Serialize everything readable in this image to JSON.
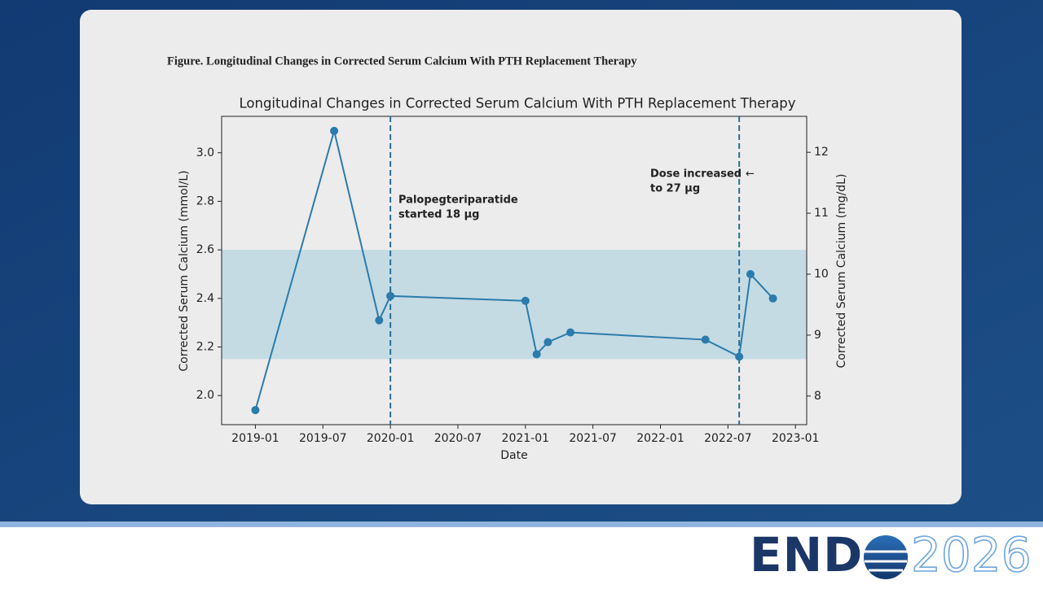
{
  "slide": {
    "heading": "Figure. Longitudinal Changes in Corrected Serum Calcium With PTH Replacement Therapy",
    "logo": {
      "left": "END",
      "right": "2026"
    }
  },
  "chart_data": {
    "type": "line",
    "title": "Longitudinal Changes in Corrected Serum Calcium With PTH Replacement Therapy",
    "x_label": "Date",
    "y_label": "Corrected Serum Calcium (mmol/L)",
    "y2_label": "Corrected Serum Calcium (mg/dL)",
    "x": [
      "2019-01",
      "2019-08",
      "2019-12",
      "2020-01",
      "2021-01",
      "2021-02",
      "2021-03",
      "2021-05",
      "2022-05",
      "2022-08",
      "2022-09",
      "2022-11"
    ],
    "values": [
      1.94,
      3.09,
      2.31,
      2.41,
      2.39,
      2.17,
      2.22,
      2.26,
      2.23,
      2.16,
      2.5,
      2.4
    ],
    "color": "#2b7bab",
    "xlim": [
      "2018-10",
      "2023-02"
    ],
    "xticks": [
      "2019-01",
      "2019-07",
      "2020-01",
      "2020-07",
      "2021-01",
      "2021-07",
      "2022-01",
      "2022-07",
      "2023-01"
    ],
    "ylim": [
      1.88,
      3.15
    ],
    "yticks": [
      {
        "value": 2,
        "label": "2.0"
      },
      2.2,
      2.4,
      2.6,
      2.8,
      {
        "value": 3,
        "label": "3.0"
      }
    ],
    "y2lim": [
      7.53,
      12.59
    ],
    "y2ticks": [
      8,
      9,
      10,
      11,
      12
    ],
    "reference_band": [
      2.15,
      2.6
    ],
    "band_color": "#c4dbe4",
    "vlines": [
      "2020-01",
      "2022-08"
    ],
    "annotations": [
      {
        "lines": [
          "Palopegteriparatide",
          "started 18 μg"
        ]
      },
      {
        "lines": [
          "Dose increased",
          "to 27 μg"
        ],
        "arrow": "←"
      }
    ],
    "grid": false
  }
}
